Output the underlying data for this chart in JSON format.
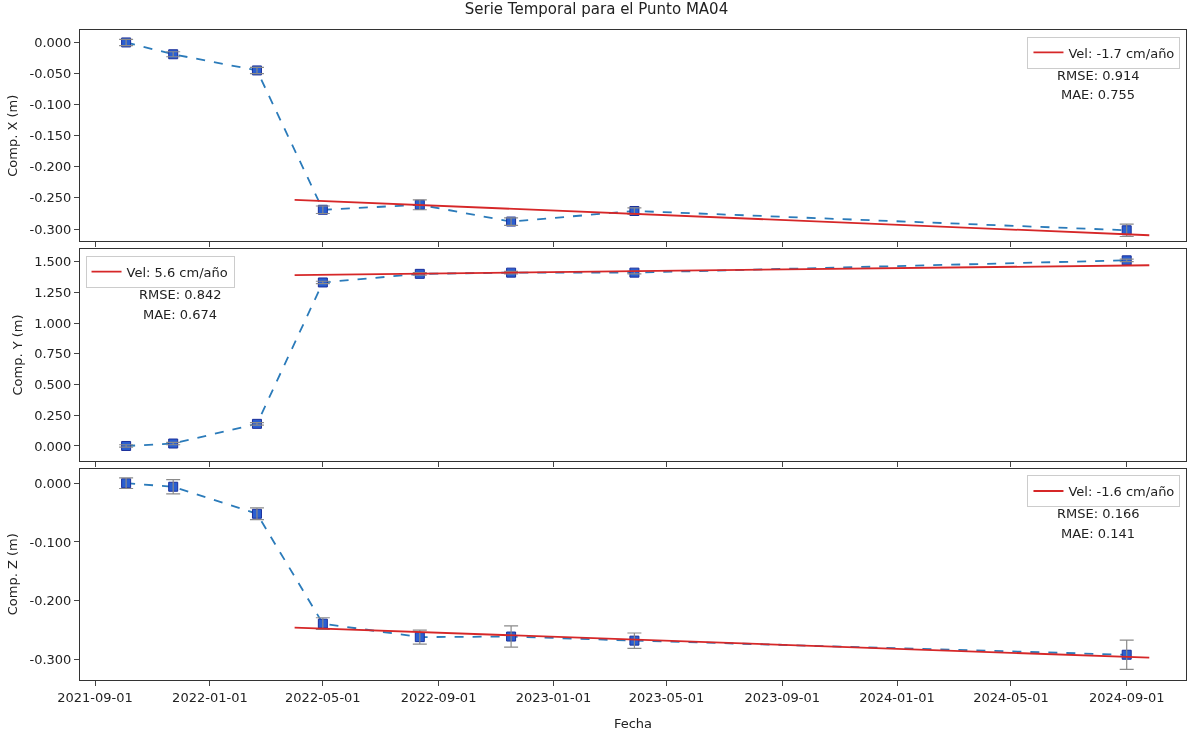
{
  "chart_data": [
    {
      "type": "line",
      "title": "Serie Temporal para el Punto MA04",
      "ylabel": "Comp. X (m)",
      "xlim": [
        "2021-08-16",
        "2024-11-03"
      ],
      "xticks": [
        "2021-09-01",
        "2022-01-01",
        "2022-05-01",
        "2022-09-01",
        "2023-01-01",
        "2023-05-01",
        "2023-09-01",
        "2024-01-01",
        "2024-05-01",
        "2024-09-01"
      ],
      "tick_labels": "y",
      "ylim": [
        -0.32,
        0.02
      ],
      "yticks": [
        {
          "value": 0,
          "label": "0.000"
        },
        {
          "value": -0.05,
          "label": "-0.050"
        },
        {
          "value": -0.1,
          "label": "-0.100"
        },
        {
          "value": -0.15,
          "label": "-0.150"
        },
        {
          "value": -0.2,
          "label": "-0.200"
        },
        {
          "value": -0.25,
          "label": "-0.250"
        },
        {
          "value": -0.3,
          "label": "-0.300"
        }
      ],
      "legend": "top right",
      "annotations": [
        "RMSE: 0.914",
        "MAE: 0.755"
      ],
      "series": [
        {
          "x": [
            "2021-10-04",
            "2021-11-23",
            "2022-02-20",
            "2022-05-01",
            "2022-08-12",
            "2022-11-17",
            "2023-03-28",
            "2024-09-01"
          ],
          "values": [
            0.0,
            -0.019,
            -0.045,
            -0.269,
            -0.261,
            -0.288,
            -0.271,
            -0.302
          ],
          "errors": [
            0.005,
            0.004,
            0.005,
            0.006,
            0.008,
            0.006,
            0.005,
            0.01
          ],
          "color": "#2b7bba",
          "marker": "square",
          "line_style": "dashed"
        },
        {
          "name": "Vel: -1.7 cm/año",
          "x": [
            "2022-04-01",
            "2024-09-25"
          ],
          "values": [
            -0.253,
            -0.31
          ],
          "color": "#d62728",
          "marker": "none",
          "line_style": "solid"
        }
      ]
    },
    {
      "type": "line",
      "ylabel": "Comp. Y (m)",
      "xlim": [
        "2021-08-16",
        "2024-11-03"
      ],
      "xticks": [
        "2021-09-01",
        "2022-01-01",
        "2022-05-01",
        "2022-09-01",
        "2023-01-01",
        "2023-05-01",
        "2023-09-01",
        "2024-01-01",
        "2024-05-01",
        "2024-09-01"
      ],
      "tick_labels": "y",
      "ylim": [
        -0.12,
        1.6
      ],
      "yticks": [
        {
          "value": 0,
          "label": "0.000"
        },
        {
          "value": 0.25,
          "label": "0.250"
        },
        {
          "value": 0.5,
          "label": "0.500"
        },
        {
          "value": 0.75,
          "label": "0.750"
        },
        {
          "value": 1.0,
          "label": "1.000"
        },
        {
          "value": 1.25,
          "label": "1.250"
        },
        {
          "value": 1.5,
          "label": "1.500"
        }
      ],
      "legend": "top left",
      "annotations": [
        "RMSE: 0.842",
        "MAE: 0.674"
      ],
      "series": [
        {
          "x": [
            "2021-10-04",
            "2021-11-23",
            "2022-02-20",
            "2022-05-01",
            "2022-08-12",
            "2022-11-17",
            "2023-03-28",
            "2024-09-01"
          ],
          "values": [
            0.0,
            0.02,
            0.18,
            1.33,
            1.4,
            1.41,
            1.41,
            1.51
          ],
          "errors": [
            0.01,
            0.01,
            0.01,
            0.01,
            0.01,
            0.01,
            0.01,
            0.01
          ],
          "color": "#2b7bba",
          "marker": "square",
          "line_style": "dashed"
        },
        {
          "name": "Vel: 5.6 cm/año",
          "x": [
            "2022-04-01",
            "2024-09-25"
          ],
          "values": [
            1.39,
            1.47
          ],
          "color": "#d62728",
          "marker": "none",
          "line_style": "solid"
        }
      ]
    },
    {
      "type": "line",
      "xlabel": "Fecha",
      "ylabel": "Comp. Z (m)",
      "xlim": [
        "2021-08-16",
        "2024-11-03"
      ],
      "xticks": [
        "2021-09-01",
        "2022-01-01",
        "2022-05-01",
        "2022-09-01",
        "2023-01-01",
        "2023-05-01",
        "2023-09-01",
        "2024-01-01",
        "2024-05-01",
        "2024-09-01"
      ],
      "ylim": [
        -0.335,
        0.025
      ],
      "yticks": [
        {
          "value": 0,
          "label": "0.000"
        },
        {
          "value": -0.1,
          "label": "-0.100"
        },
        {
          "value": -0.2,
          "label": "-0.200"
        },
        {
          "value": -0.3,
          "label": "-0.300"
        }
      ],
      "legend": "top right",
      "annotations": [
        "RMSE: 0.166",
        "MAE: 0.141"
      ],
      "series": [
        {
          "x": [
            "2021-10-04",
            "2021-11-23",
            "2022-02-20",
            "2022-05-01",
            "2022-08-12",
            "2022-11-17",
            "2023-03-28",
            "2024-09-01"
          ],
          "values": [
            0.0,
            -0.006,
            -0.052,
            -0.239,
            -0.262,
            -0.261,
            -0.268,
            -0.292
          ],
          "errors": [
            0.009,
            0.012,
            0.01,
            0.01,
            0.012,
            0.018,
            0.013,
            0.025
          ],
          "color": "#2b7bba",
          "marker": "square",
          "line_style": "dashed"
        },
        {
          "name": "Vel: -1.6 cm/año",
          "x": [
            "2022-04-01",
            "2024-09-25"
          ],
          "values": [
            -0.246,
            -0.297
          ],
          "color": "#d62728",
          "marker": "none",
          "line_style": "solid"
        }
      ]
    }
  ]
}
